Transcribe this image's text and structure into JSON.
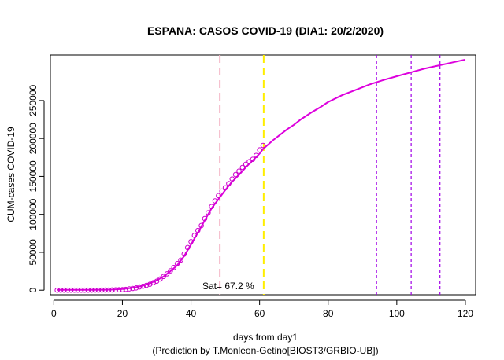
{
  "chart_data": {
    "type": "scatter",
    "title": "ESPANA: CASOS COVID-19 (DIA1: 20/2/2020)",
    "xlabel": "days from day1",
    "xlabel2": "(Prediction by T.Monleon-Getino[BIOST3/GRBIO-UB])",
    "ylabel": "CUM-cases COVID-19",
    "xlim": [
      -1,
      123
    ],
    "ylim": [
      -6000,
      310000
    ],
    "x_ticks": [
      0,
      20,
      40,
      60,
      80,
      100,
      120
    ],
    "x_tick_labels": [
      "0",
      "20",
      "40",
      "60",
      "80",
      "100",
      "120"
    ],
    "y_ticks": [
      0,
      50000,
      100000,
      150000,
      200000,
      250000
    ],
    "y_tick_labels": [
      "0",
      "50000",
      "100000",
      "150000",
      "200000",
      "250000"
    ],
    "grid": false,
    "annotation": {
      "text": "Sat= 67.2 %",
      "x": 49,
      "y": 0
    },
    "vlines": [
      {
        "x": 48.4,
        "color": "#f4b8c8",
        "dash": "10,6",
        "width": 2
      },
      {
        "x": 61.2,
        "color": "#ffee00",
        "dash": "10,6",
        "width": 2
      },
      {
        "x": 94.1,
        "color": "#a100e6",
        "dash": "4,3",
        "width": 1.2
      },
      {
        "x": 104.2,
        "color": "#a100e6",
        "dash": "4,3",
        "width": 1.2
      },
      {
        "x": 112.6,
        "color": "#a100e6",
        "dash": "4,3",
        "width": 1.2
      }
    ],
    "colors": {
      "observed": "#cc00cc",
      "fit": "#dd00dd"
    },
    "observed": {
      "name": "observed",
      "x": [
        1,
        2,
        3,
        4,
        5,
        6,
        7,
        8,
        9,
        10,
        11,
        12,
        13,
        14,
        15,
        16,
        17,
        18,
        19,
        20,
        21,
        22,
        23,
        24,
        25,
        26,
        27,
        28,
        29,
        30,
        31,
        32,
        33,
        34,
        35,
        36,
        37,
        38,
        39,
        40,
        41,
        42,
        43,
        44,
        45,
        46,
        47,
        48,
        49,
        50,
        51,
        52,
        53,
        54,
        55,
        56,
        57,
        58,
        59,
        60,
        61
      ],
      "y": [
        2,
        2,
        2,
        2,
        2,
        2,
        2,
        2,
        5,
        13,
        32,
        45,
        84,
        120,
        165,
        222,
        259,
        400,
        500,
        673,
        1073,
        1695,
        2277,
        3004,
        4335,
        5232,
        6391,
        7798,
        9942,
        11826,
        14769,
        18077,
        21571,
        25496,
        29909,
        35136,
        39673,
        47610,
        56188,
        64059,
        72248,
        78797,
        85195,
        94417,
        102136,
        110238,
        117710,
        124736,
        130759,
        135032,
        140510,
        146690,
        152446,
        157022,
        161852,
        166019,
        169496,
        172541,
        177644,
        184948,
        190839
      ]
    },
    "fit": {
      "name": "prediction",
      "x": [
        1,
        5,
        10,
        15,
        17,
        20,
        22,
        24,
        26,
        28,
        30,
        32,
        34,
        36,
        38,
        40,
        42,
        44,
        46,
        48,
        50,
        52,
        54,
        56,
        58,
        60,
        61,
        62,
        64,
        66,
        68,
        70,
        72,
        75,
        78,
        80,
        84,
        88,
        92,
        96,
        100,
        104,
        108,
        112,
        116,
        120
      ],
      "y": [
        500,
        500,
        500,
        600,
        800,
        1500,
        2500,
        4000,
        6000,
        9000,
        13000,
        18000,
        25000,
        33000,
        45000,
        60000,
        76000,
        92000,
        108000,
        120000,
        132000,
        143000,
        152000,
        162000,
        171000,
        180000,
        186000,
        190000,
        198000,
        205000,
        212000,
        218000,
        225000,
        234000,
        242000,
        248000,
        257000,
        264000,
        271000,
        277000,
        282000,
        287000,
        292000,
        296000,
        300000,
        304000
      ]
    }
  }
}
